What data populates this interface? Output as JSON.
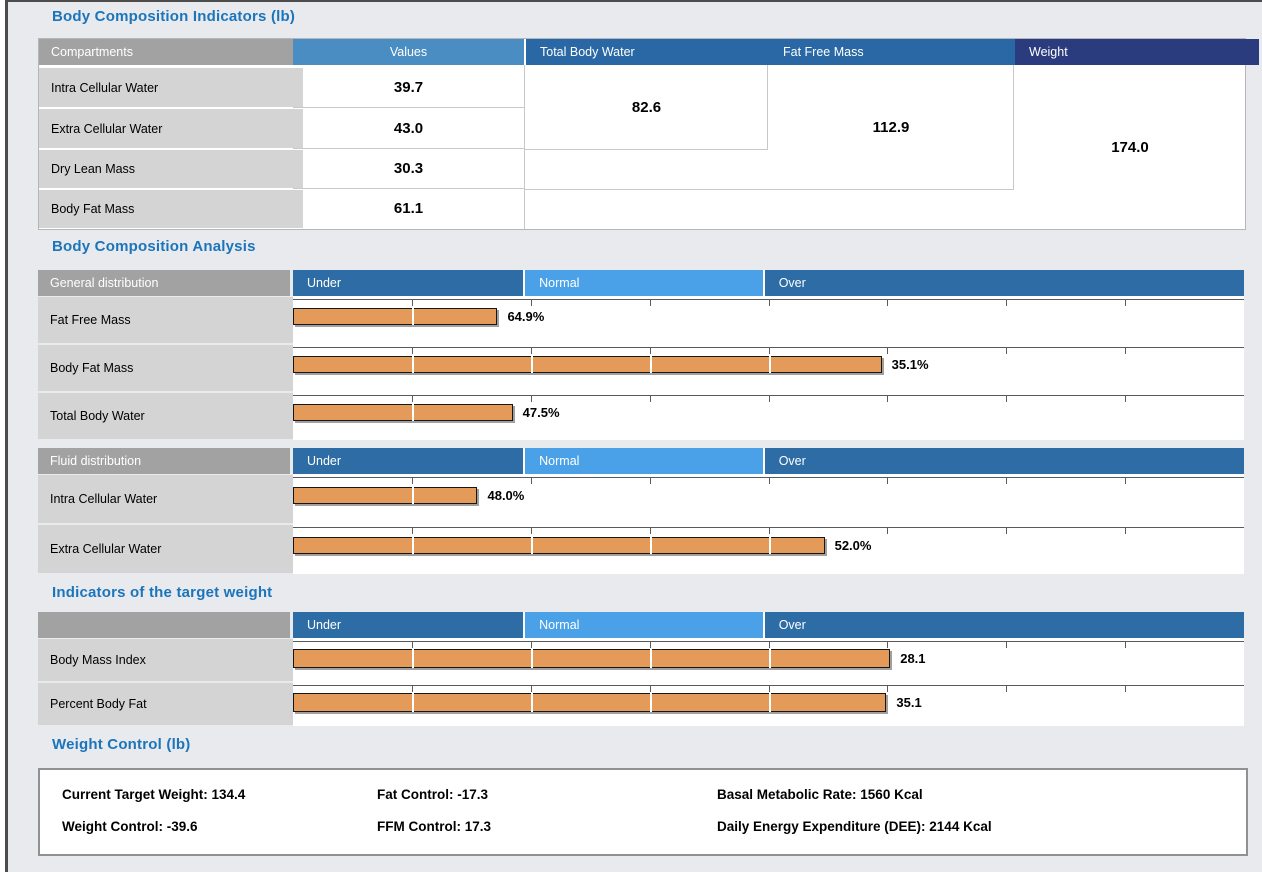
{
  "colors": {
    "page_bg": "#e9eaee",
    "frame_dark": "#4c4c4c",
    "frame_white": "#ffffff",
    "title_blue": "#1b75bb",
    "header_gray": "#a2a2a2",
    "label_gray": "#d4d4d4",
    "values_header_blue": "#4a8dc3",
    "mid_header_blue": "#2968a5",
    "navy_header": "#2a3b7e",
    "zone_under_over_blue": "#2d6ca5",
    "zone_normal_blue": "#4ba1e8",
    "bar_orange": "#e49a58",
    "bar_border": "#161616",
    "bar_shadow": "#a0a0a0",
    "grid_line": "#c6c9cc",
    "tick_line": "#5a5a5a",
    "box_border": "#8f9194",
    "table_border": "#b4b7ba",
    "white": "#ffffff"
  },
  "indicators_table": {
    "title": "Body Composition Indicators (lb)",
    "columns": [
      "Compartments",
      "Values",
      "Total Body Water",
      "Fat Free Mass",
      "Weight"
    ],
    "rows": [
      {
        "label": "Intra Cellular Water",
        "value": "39.7"
      },
      {
        "label": "Extra Cellular Water",
        "value": "43.0"
      },
      {
        "label": "Dry Lean Mass",
        "value": "30.3"
      },
      {
        "label": "Body Fat Mass",
        "value": "61.1"
      }
    ],
    "merged_values": [
      {
        "name": "Total Body Water",
        "value": "82.6",
        "spans_rows": 2
      },
      {
        "name": "Fat Free Mass",
        "value": "112.9",
        "spans_rows": 3
      },
      {
        "name": "Weight",
        "value": "174.0",
        "spans_rows": 4
      }
    ]
  },
  "analysis": {
    "title": "Body Composition Analysis",
    "zones": [
      "Under",
      "Normal",
      "Over"
    ],
    "groups": [
      {
        "header": "General distribution",
        "rows": [
          {
            "label": "Fat Free Mass",
            "value": "64.9%",
            "bar_pct": 21.5
          },
          {
            "label": "Body Fat Mass",
            "value": "35.1%",
            "bar_pct": 61.9
          },
          {
            "label": "Total Body Water",
            "value": "47.5%",
            "bar_pct": 23.1
          }
        ]
      },
      {
        "header": "Fluid distribution",
        "rows": [
          {
            "label": "Intra Cellular Water",
            "value": "48.0%",
            "bar_pct": 19.4
          },
          {
            "label": "Extra Cellular Water",
            "value": "52.0%",
            "bar_pct": 55.9
          }
        ]
      }
    ]
  },
  "target": {
    "title": "Indicators of the target weight",
    "header": "",
    "zones": [
      "Under",
      "Normal",
      "Over"
    ],
    "rows": [
      {
        "label": "Body Mass Index",
        "value": "28.1",
        "bar_pct": 62.8
      },
      {
        "label": "Percent Body Fat",
        "value": "35.1",
        "bar_pct": 62.4
      }
    ]
  },
  "weight_control": {
    "title": "Weight Control (lb)",
    "items": [
      [
        "Current Target Weight: 134.4",
        "Fat Control: -17.3",
        "Basal Metabolic Rate: 1560 Kcal"
      ],
      [
        "Weight Control: -39.6",
        "FFM Control: 17.3",
        "Daily Energy Expenditure (DEE): 2144 Kcal"
      ]
    ]
  }
}
